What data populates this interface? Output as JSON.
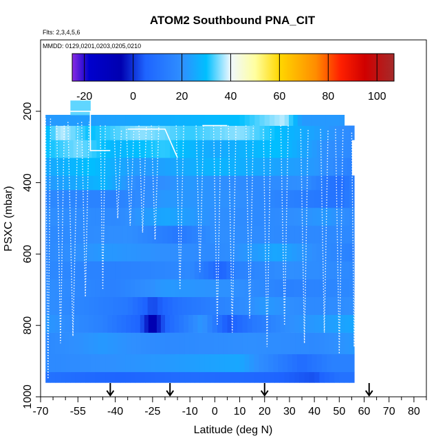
{
  "chart_data": {
    "type": "heatmap",
    "title": "ATOM2 Southbound PNA_CIT",
    "flights_note": "Flts: 2,3,4,5,6",
    "dates_note": "MMDD: 0129,0201,0203,0205,0210",
    "xlabel": "Latitude (deg N)",
    "ylabel": "PSXC (mbar)",
    "xlim": [
      -70,
      85
    ],
    "ylim": [
      1000,
      0
    ],
    "x_ticks": [
      -70,
      -55,
      -40,
      -25,
      -10,
      0,
      10,
      20,
      30,
      40,
      50,
      60,
      70,
      80
    ],
    "x_tick_labels": [
      "-70",
      "-55",
      "-40",
      "-25",
      "-10",
      "0",
      "10",
      "20",
      "30",
      "40",
      "50",
      "60",
      "70",
      "80"
    ],
    "y_ticks": [
      200,
      400,
      600,
      800,
      1000
    ],
    "y_tick_labels": [
      "200",
      "400",
      "600",
      "800",
      "1000"
    ],
    "colorbar": {
      "min": -25,
      "max": 107,
      "ticks": [
        -20,
        0,
        20,
        40,
        60,
        80,
        100
      ],
      "tick_labels": [
        "-20",
        "0",
        "20",
        "40",
        "60",
        "80",
        "100"
      ],
      "stops": [
        {
          "v": -25,
          "c": "#8a2be2"
        },
        {
          "v": -18,
          "c": "#0000cd"
        },
        {
          "v": -5,
          "c": "#0000b0"
        },
        {
          "v": 5,
          "c": "#1e64ff"
        },
        {
          "v": 20,
          "c": "#2f8fff"
        },
        {
          "v": 30,
          "c": "#00bfff"
        },
        {
          "v": 40,
          "c": "#f0f8ff"
        },
        {
          "v": 50,
          "c": "#ffffa0"
        },
        {
          "v": 60,
          "c": "#ffd700"
        },
        {
          "v": 75,
          "c": "#ff8c00"
        },
        {
          "v": 85,
          "c": "#ff2000"
        },
        {
          "v": 95,
          "c": "#d00000"
        },
        {
          "v": 107,
          "c": "#a52a2a"
        }
      ]
    },
    "flight_arrows_lat": [
      -42,
      -18,
      20,
      62
    ],
    "layers": [
      {
        "p": [
          930,
          960
        ],
        "segs": [
          [
            -68,
            10
          ],
          [
            -40,
            5
          ],
          [
            -10,
            8
          ],
          [
            20,
            6
          ],
          [
            40,
            3
          ],
          [
            50,
            10
          ],
          [
            56,
            10
          ]
        ]
      },
      {
        "p": [
          880,
          930
        ],
        "segs": [
          [
            -68,
            18
          ],
          [
            -20,
            22
          ],
          [
            10,
            25
          ],
          [
            35,
            8
          ],
          [
            47,
            15
          ],
          [
            56,
            15
          ]
        ]
      },
      {
        "p": [
          820,
          880
        ],
        "segs": [
          [
            -68,
            18
          ],
          [
            -45,
            22
          ],
          [
            -20,
            18
          ],
          [
            15,
            20
          ],
          [
            40,
            18
          ],
          [
            56,
            22
          ]
        ]
      },
      {
        "p": [
          770,
          820
        ],
        "segs": [
          [
            -68,
            22
          ],
          [
            -45,
            15
          ],
          [
            -30,
            5
          ],
          [
            -25,
            -8
          ],
          [
            -20,
            5
          ],
          [
            -5,
            22
          ],
          [
            5,
            3
          ],
          [
            15,
            12
          ],
          [
            30,
            20
          ],
          [
            56,
            25
          ]
        ]
      },
      {
        "p": [
          720,
          770
        ],
        "segs": [
          [
            -68,
            20
          ],
          [
            -35,
            12
          ],
          [
            -25,
            2
          ],
          [
            -15,
            10
          ],
          [
            0,
            15
          ],
          [
            20,
            22
          ],
          [
            40,
            18
          ],
          [
            56,
            20
          ]
        ]
      },
      {
        "p": [
          670,
          720
        ],
        "segs": [
          [
            -68,
            20
          ],
          [
            -40,
            15
          ],
          [
            -20,
            22
          ],
          [
            10,
            20
          ],
          [
            30,
            15
          ],
          [
            56,
            18
          ]
        ]
      },
      {
        "p": [
          620,
          670
        ],
        "segs": [
          [
            -68,
            18
          ],
          [
            -40,
            15
          ],
          [
            -10,
            18
          ],
          [
            3,
            5
          ],
          [
            8,
            15
          ],
          [
            30,
            20
          ],
          [
            56,
            18
          ]
        ]
      },
      {
        "p": [
          570,
          620
        ],
        "segs": [
          [
            -68,
            18
          ],
          [
            -45,
            22
          ],
          [
            -20,
            20
          ],
          [
            0,
            18
          ],
          [
            25,
            25
          ],
          [
            45,
            18
          ],
          [
            56,
            15
          ]
        ]
      },
      {
        "p": [
          520,
          570
        ],
        "segs": [
          [
            -68,
            18
          ],
          [
            -35,
            20
          ],
          [
            -15,
            12
          ],
          [
            0,
            20
          ],
          [
            30,
            18
          ],
          [
            56,
            18
          ]
        ]
      },
      {
        "p": [
          470,
          520
        ],
        "segs": [
          [
            -68,
            20
          ],
          [
            -40,
            18
          ],
          [
            -20,
            25
          ],
          [
            0,
            20
          ],
          [
            20,
            18
          ],
          [
            45,
            22
          ],
          [
            56,
            18
          ]
        ]
      },
      {
        "p": [
          420,
          470
        ],
        "segs": [
          [
            -68,
            18
          ],
          [
            -40,
            15
          ],
          [
            -20,
            22
          ],
          [
            10,
            20
          ],
          [
            30,
            15
          ],
          [
            50,
            10
          ],
          [
            56,
            15
          ]
        ]
      },
      {
        "p": [
          380,
          420
        ],
        "segs": [
          [
            -68,
            22
          ],
          [
            -45,
            28
          ],
          [
            -30,
            18
          ],
          [
            -10,
            22
          ],
          [
            15,
            18
          ],
          [
            35,
            20
          ],
          [
            50,
            8
          ],
          [
            56,
            15
          ]
        ]
      },
      {
        "p": [
          330,
          380
        ],
        "segs": [
          [
            -68,
            25
          ],
          [
            -50,
            30
          ],
          [
            -30,
            22
          ],
          [
            0,
            28
          ],
          [
            20,
            25
          ],
          [
            40,
            22
          ],
          [
            55,
            15
          ]
        ]
      },
      {
        "p": [
          280,
          330
        ],
        "segs": [
          [
            -68,
            30
          ],
          [
            -55,
            35
          ],
          [
            -40,
            28
          ],
          [
            -20,
            32
          ],
          [
            0,
            25
          ],
          [
            25,
            30
          ],
          [
            45,
            20
          ],
          [
            55,
            18
          ]
        ]
      },
      {
        "p": [
          240,
          280
        ],
        "segs": [
          [
            -68,
            28
          ],
          [
            -62,
            38
          ],
          [
            -50,
            30
          ],
          [
            -30,
            36
          ],
          [
            -10,
            32
          ],
          [
            10,
            36
          ],
          [
            30,
            28
          ],
          [
            50,
            20
          ],
          [
            56,
            18
          ]
        ]
      },
      {
        "p": [
          210,
          240
        ],
        "segs": [
          [
            -68,
            22
          ],
          [
            -40,
            24
          ],
          [
            10,
            30
          ],
          [
            28,
            38
          ],
          [
            35,
            22
          ],
          [
            52,
            22
          ]
        ]
      },
      {
        "p": [
          170,
          210
        ],
        "segs": [
          [
            -58,
            34
          ],
          [
            -50,
            34
          ]
        ]
      }
    ],
    "profiles": [
      {
        "x": -67,
        "w": 2,
        "ptop": 220,
        "pbot": 950
      },
      {
        "x": -62,
        "w": 3,
        "ptop": 240,
        "pbot": 850
      },
      {
        "x": -57,
        "w": 4,
        "ptop": 230,
        "pbot": 830
      },
      {
        "x": -52,
        "w": 3,
        "ptop": 230,
        "pbot": 720
      },
      {
        "x": -45,
        "w": 2,
        "ptop": 240,
        "pbot": 700
      },
      {
        "x": -39,
        "w": 3,
        "ptop": 250,
        "pbot": 500
      },
      {
        "x": -34,
        "w": 3,
        "ptop": 250,
        "pbot": 520
      },
      {
        "x": -29,
        "w": 3,
        "ptop": 240,
        "pbot": 540
      },
      {
        "x": -24,
        "w": 3,
        "ptop": 240,
        "pbot": 560
      },
      {
        "x": -14,
        "w": 3,
        "ptop": 240,
        "pbot": 700
      },
      {
        "x": -6,
        "w": 3,
        "ptop": 240,
        "pbot": 650
      },
      {
        "x": 1,
        "w": 3,
        "ptop": 240,
        "pbot": 800
      },
      {
        "x": 7,
        "w": 3,
        "ptop": 240,
        "pbot": 820
      },
      {
        "x": 14,
        "w": 3,
        "ptop": 240,
        "pbot": 780
      },
      {
        "x": 21,
        "w": 3,
        "ptop": 250,
        "pbot": 860
      },
      {
        "x": 28,
        "w": 3,
        "ptop": 240,
        "pbot": 800
      },
      {
        "x": 36,
        "w": 3,
        "ptop": 250,
        "pbot": 850
      },
      {
        "x": 44,
        "w": 3,
        "ptop": 250,
        "pbot": 820
      },
      {
        "x": 50,
        "w": 3,
        "ptop": 250,
        "pbot": 880
      },
      {
        "x": 56,
        "w": 2,
        "ptop": 260,
        "pbot": 860
      }
    ]
  }
}
